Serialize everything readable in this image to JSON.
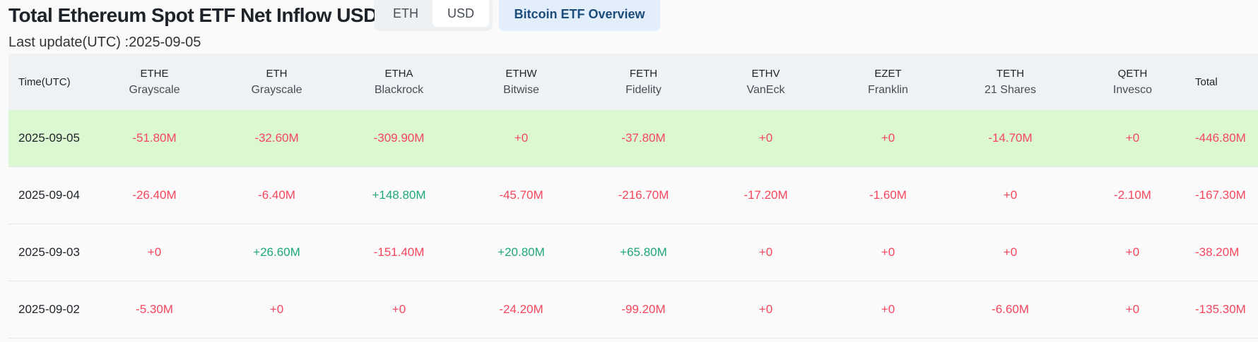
{
  "header": {
    "title": "Total Ethereum Spot ETF Net Inflow USD",
    "unit_toggle": {
      "options": [
        "ETH",
        "USD"
      ],
      "selected": "USD"
    },
    "bitcoin_button": "Bitcoin ETF Overview",
    "last_update": "Last update(UTC) :2025-09-05"
  },
  "colors": {
    "negative": "#f6465d",
    "positive": "#1fa67a",
    "highlight_row": "#dcf8d3",
    "header_bg": "#eff2f5"
  },
  "table": {
    "time_header": "Time(UTC)",
    "total_header": "Total",
    "columns": [
      {
        "ticker": "ETHE",
        "issuer": "Grayscale"
      },
      {
        "ticker": "ETH",
        "issuer": "Grayscale"
      },
      {
        "ticker": "ETHA",
        "issuer": "Blackrock"
      },
      {
        "ticker": "ETHW",
        "issuer": "Bitwise"
      },
      {
        "ticker": "FETH",
        "issuer": "Fidelity"
      },
      {
        "ticker": "ETHV",
        "issuer": "VanEck"
      },
      {
        "ticker": "EZET",
        "issuer": "Franklin"
      },
      {
        "ticker": "TETH",
        "issuer": "21 Shares"
      },
      {
        "ticker": "QETH",
        "issuer": "Invesco"
      }
    ],
    "rows": [
      {
        "date": "2025-09-05",
        "highlighted": true,
        "values": [
          "-51.80M",
          "-32.60M",
          "-309.90M",
          "+0",
          "-37.80M",
          "+0",
          "+0",
          "-14.70M",
          "+0"
        ],
        "total": "-446.80M"
      },
      {
        "date": "2025-09-04",
        "highlighted": false,
        "values": [
          "-26.40M",
          "-6.40M",
          "+148.80M",
          "-45.70M",
          "-216.70M",
          "-17.20M",
          "-1.60M",
          "+0",
          "-2.10M"
        ],
        "total": "-167.30M"
      },
      {
        "date": "2025-09-03",
        "highlighted": false,
        "values": [
          "+0",
          "+26.60M",
          "-151.40M",
          "+20.80M",
          "+65.80M",
          "+0",
          "+0",
          "+0",
          "+0"
        ],
        "total": "-38.20M"
      },
      {
        "date": "2025-09-02",
        "highlighted": false,
        "values": [
          "-5.30M",
          "+0",
          "+0",
          "-24.20M",
          "-99.20M",
          "+0",
          "+0",
          "-6.60M",
          "+0"
        ],
        "total": "-135.30M"
      }
    ]
  }
}
